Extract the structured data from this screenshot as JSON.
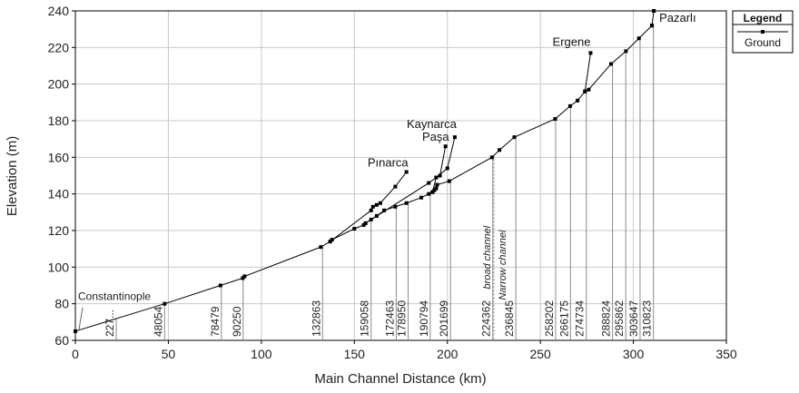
{
  "chart_data": {
    "type": "line",
    "xlabel": "Main Channel Distance (km)",
    "ylabel": "Elevation (m)",
    "xlim": [
      0,
      350
    ],
    "ylim": [
      60,
      240
    ],
    "x_ticks": [
      0,
      50,
      100,
      150,
      200,
      250,
      300,
      350
    ],
    "y_ticks": [
      60,
      80,
      100,
      120,
      140,
      160,
      180,
      200,
      220,
      240
    ],
    "grid": true,
    "legend": {
      "title": "Legend",
      "entries": [
        "Ground"
      ],
      "placement": "top-right"
    },
    "main_channel": {
      "name": "Ground",
      "x": [
        0,
        48,
        78,
        90,
        91,
        132,
        137,
        138,
        150,
        155,
        156,
        159,
        162,
        166,
        172,
        178,
        186,
        190,
        192,
        193,
        194,
        194.5,
        201,
        224,
        228,
        236,
        258,
        266,
        270,
        274,
        276,
        288,
        296,
        303,
        310
      ],
      "y": [
        65,
        80,
        90,
        94,
        95,
        111,
        114,
        115,
        121,
        123,
        124,
        126,
        128,
        131,
        133,
        135,
        138,
        140,
        141,
        142,
        143,
        145,
        147,
        160,
        164,
        171,
        181,
        188,
        191,
        196,
        197,
        211,
        218,
        225,
        232
      ]
    },
    "tributaries": [
      {
        "label": "Pınarca",
        "x": [
          137,
          159,
          160,
          162,
          164,
          172,
          178
        ],
        "y": [
          114,
          131,
          133,
          134,
          135,
          144,
          152
        ]
      },
      {
        "label": "Paşa",
        "x": [
          192,
          194,
          196,
          199
        ],
        "y": [
          141,
          149,
          150,
          166
        ]
      },
      {
        "label": "Kaynarca",
        "x": [
          156,
          190,
          194,
          200,
          204
        ],
        "y": [
          124,
          146,
          149,
          154,
          171
        ]
      },
      {
        "label": "Ergene",
        "x": [
          274,
          277
        ],
        "y": [
          196,
          217
        ]
      },
      {
        "label": "Pazarlı",
        "x": [
          310,
          311
        ],
        "y": [
          232,
          240
        ]
      }
    ],
    "stations": [
      {
        "x": 0,
        "label": "Constantinople"
      },
      {
        "x": 22,
        "label": "227..."
      },
      {
        "x": 48,
        "label": "48054"
      },
      {
        "x": 78.5,
        "label": "78479"
      },
      {
        "x": 90.2,
        "label": "90250"
      },
      {
        "x": 132.9,
        "label": "132863"
      },
      {
        "x": 159,
        "label": "159058"
      },
      {
        "x": 172.5,
        "label": "172463"
      },
      {
        "x": 178.9,
        "label": "178950"
      },
      {
        "x": 190.8,
        "label": "190794"
      },
      {
        "x": 201.7,
        "label": "201699"
      },
      {
        "x": 224.4,
        "label": "224362"
      },
      {
        "x": 236.8,
        "label": "236845"
      },
      {
        "x": 258.2,
        "label": "258202"
      },
      {
        "x": 266.2,
        "label": "266175"
      },
      {
        "x": 274.7,
        "label": "274734"
      },
      {
        "x": 288.8,
        "label": "288824"
      },
      {
        "x": 295.9,
        "label": "295862"
      },
      {
        "x": 303.6,
        "label": "303647"
      },
      {
        "x": 310.8,
        "label": "310823"
      }
    ],
    "annotations": {
      "broad": "broad channel",
      "narrow": "Narrow channel",
      "divider_x": 225
    }
  },
  "colors": {
    "line": "#000000",
    "grid": "#c8c8c8",
    "divider": "#888888"
  }
}
